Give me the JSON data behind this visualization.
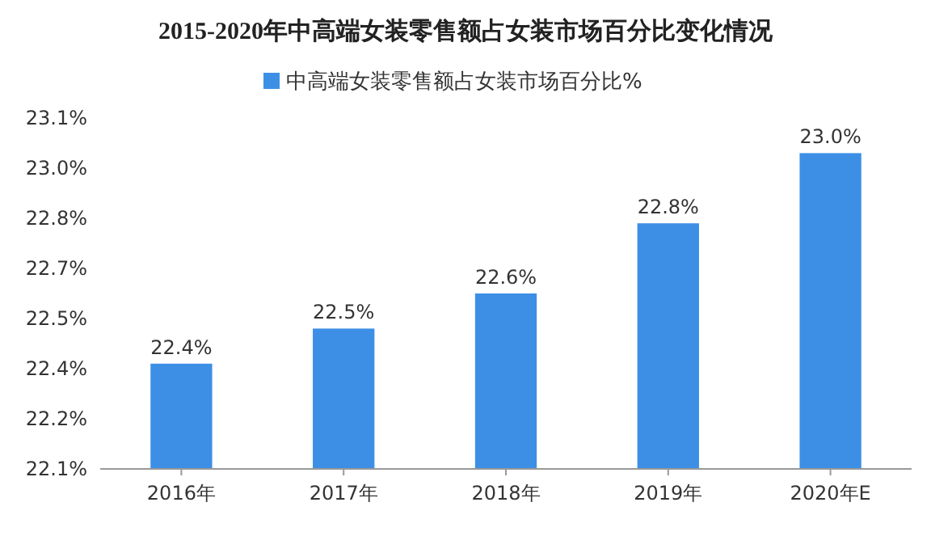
{
  "chart_data": {
    "type": "bar",
    "title": "2015-2020年中高端女装零售额占女装市场百分比变化情况",
    "categories": [
      "2016年",
      "2017年",
      "2018年",
      "2019年",
      "2020年E"
    ],
    "series": [
      {
        "name": "中高端女装零售额占女装市场百分比%",
        "color": "#3d8fe6",
        "values": [
          22.4,
          22.5,
          22.6,
          22.8,
          23.0
        ],
        "value_labels": [
          "22.4%",
          "22.5%",
          "22.6%",
          "22.8%",
          "23.0%"
        ]
      }
    ],
    "ylim": [
      22.1,
      23.1
    ],
    "yticks": [
      {
        "value": 22.1,
        "label": "22.1%"
      },
      {
        "value": 22.243,
        "label": "22.2%"
      },
      {
        "value": 22.386,
        "label": "22.4%"
      },
      {
        "value": 22.529,
        "label": "22.5%"
      },
      {
        "value": 22.671,
        "label": "22.7%"
      },
      {
        "value": 22.814,
        "label": "22.8%"
      },
      {
        "value": 22.957,
        "label": "23.0%"
      },
      {
        "value": 23.1,
        "label": "23.1%"
      }
    ],
    "grid": false,
    "legend": "top"
  }
}
